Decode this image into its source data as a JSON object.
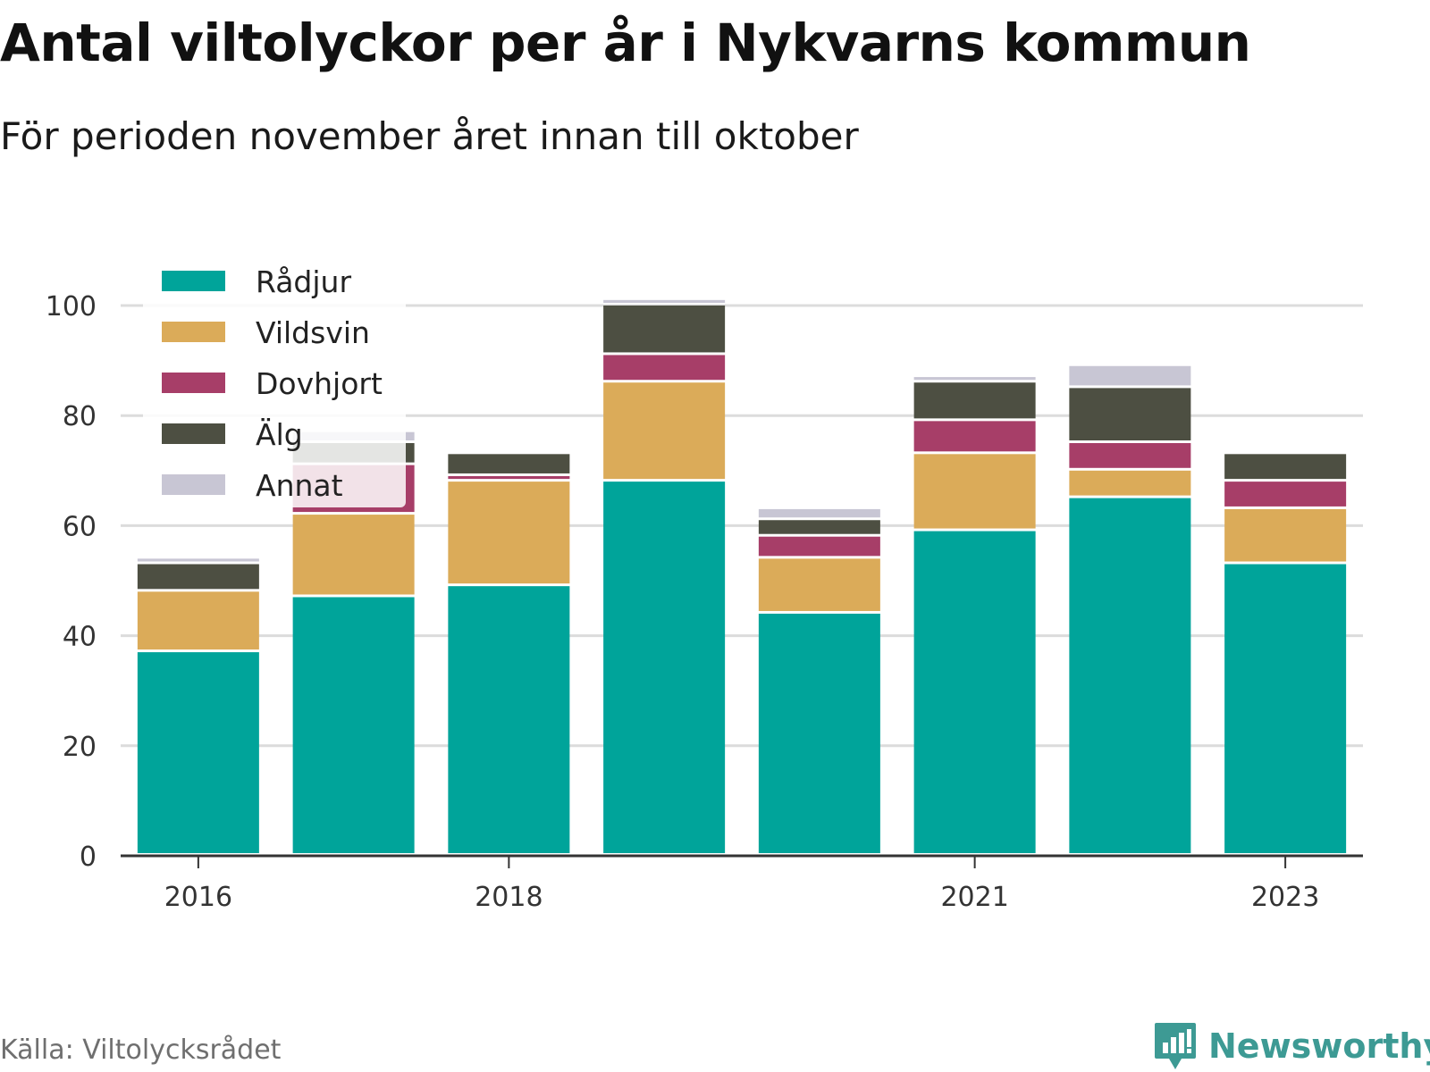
{
  "title": "Antal viltolyckor per år i Nykvarns kommun",
  "subtitle": "För perioden november året innan till oktober",
  "source": "Källa: Viltolycksrådet",
  "brand": "Newsworthy",
  "colors": {
    "Rådjur": "#00a49a",
    "Vildsvin": "#dbab59",
    "Dovhjort": "#a73e68",
    "Älg": "#4d4f42",
    "Annat": "#c8c6d4"
  },
  "chart_data": {
    "type": "bar",
    "stacked": true,
    "categories": [
      "2016",
      "2017",
      "2018",
      "2019",
      "2020",
      "2021",
      "2022",
      "2023"
    ],
    "x_tick_labels": [
      "2016",
      "",
      "2018",
      "",
      "",
      "2021",
      "",
      "2023"
    ],
    "y_ticks": [
      0,
      20,
      40,
      60,
      80,
      100
    ],
    "ylim": [
      0,
      102
    ],
    "grid": true,
    "legend_position": "top-left",
    "series": [
      {
        "name": "Rådjur",
        "values": [
          37,
          47,
          49,
          68,
          44,
          59,
          65,
          53
        ]
      },
      {
        "name": "Vildsvin",
        "values": [
          11,
          15,
          19,
          18,
          10,
          14,
          5,
          10
        ]
      },
      {
        "name": "Dovhjort",
        "values": [
          0,
          9,
          1,
          5,
          4,
          6,
          5,
          5
        ]
      },
      {
        "name": "Älg",
        "values": [
          5,
          4,
          4,
          9,
          3,
          7,
          10,
          5
        ]
      },
      {
        "name": "Annat",
        "values": [
          1,
          2,
          0,
          1,
          2,
          1,
          4,
          0
        ]
      }
    ]
  }
}
